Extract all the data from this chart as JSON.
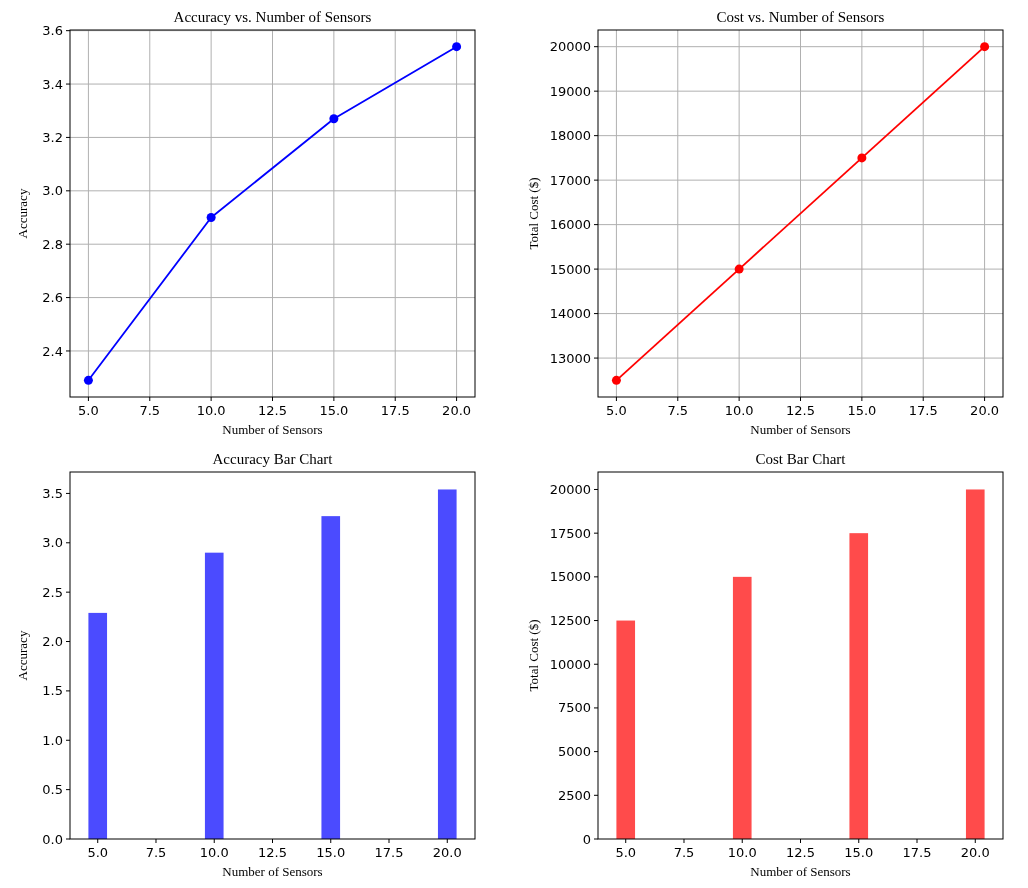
{
  "chart_data": [
    {
      "type": "line",
      "title": "Accuracy vs. Number of Sensors",
      "xlabel": "Number of Sensors",
      "ylabel": "Accuracy",
      "x": [
        5,
        10,
        15,
        20
      ],
      "series": [
        {
          "color": "#0000ff",
          "values": [
            2.29,
            2.9,
            3.27,
            3.54
          ]
        }
      ],
      "xlim": [
        4.25,
        20.75
      ],
      "ylim": [
        2.2275,
        3.6025
      ],
      "xticks": [
        {
          "value": 5,
          "label": "5.0"
        },
        7.5,
        {
          "value": 10,
          "label": "10.0"
        },
        12.5,
        {
          "value": 15,
          "label": "15.0"
        },
        17.5,
        {
          "value": 20,
          "label": "20.0"
        }
      ],
      "yticks": [
        2.4,
        2.6,
        2.8,
        {
          "value": 3,
          "label": "3.0"
        },
        3.2,
        3.4,
        3.6
      ],
      "grid": true,
      "marker": "circle"
    },
    {
      "type": "line",
      "title": "Cost vs. Number of Sensors",
      "xlabel": "Number of Sensors",
      "ylabel": "Total Cost ($)",
      "x": [
        5,
        10,
        15,
        20
      ],
      "series": [
        {
          "color": "#ff0000",
          "values": [
            12500,
            15000,
            17500,
            20000
          ]
        }
      ],
      "xlim": [
        4.25,
        20.75
      ],
      "ylim": [
        12125,
        20375
      ],
      "xticks": [
        {
          "value": 5,
          "label": "5.0"
        },
        7.5,
        {
          "value": 10,
          "label": "10.0"
        },
        12.5,
        {
          "value": 15,
          "label": "15.0"
        },
        17.5,
        {
          "value": 20,
          "label": "20.0"
        }
      ],
      "yticks": [
        13000,
        14000,
        15000,
        16000,
        17000,
        18000,
        19000,
        20000
      ],
      "grid": true,
      "marker": "circle"
    },
    {
      "type": "bar",
      "title": "Accuracy Bar Chart",
      "xlabel": "Number of Sensors",
      "ylabel": "Accuracy",
      "x": [
        5,
        10,
        15,
        20
      ],
      "series": [
        {
          "color": "#4b4bff",
          "values": [
            2.29,
            2.9,
            3.27,
            3.54
          ]
        }
      ],
      "xlim": [
        3.81,
        21.19
      ],
      "ylim": [
        0,
        3.717
      ],
      "xticks": [
        {
          "value": 5,
          "label": "5.0"
        },
        7.5,
        {
          "value": 10,
          "label": "10.0"
        },
        12.5,
        {
          "value": 15,
          "label": "15.0"
        },
        17.5,
        {
          "value": 20,
          "label": "20.0"
        }
      ],
      "yticks": [
        {
          "value": 0,
          "label": "0.0"
        },
        0.5,
        {
          "value": 1,
          "label": "1.0"
        },
        1.5,
        {
          "value": 2,
          "label": "2.0"
        },
        2.5,
        {
          "value": 3,
          "label": "3.0"
        },
        3.5
      ]
    },
    {
      "type": "bar",
      "title": "Cost Bar Chart",
      "xlabel": "Number of Sensors",
      "ylabel": "Total Cost ($)",
      "x": [
        5,
        10,
        15,
        20
      ],
      "series": [
        {
          "color": "#ff4b4b",
          "values": [
            12500,
            15000,
            17500,
            20000
          ]
        }
      ],
      "xlim": [
        3.81,
        21.19
      ],
      "ylim": [
        0,
        21000
      ],
      "xticks": [
        {
          "value": 5,
          "label": "5.0"
        },
        7.5,
        {
          "value": 10,
          "label": "10.0"
        },
        12.5,
        {
          "value": 15,
          "label": "15.0"
        },
        17.5,
        {
          "value": 20,
          "label": "20.0"
        }
      ],
      "yticks": [
        0,
        2500,
        5000,
        7500,
        10000,
        12500,
        15000,
        17500,
        20000
      ]
    }
  ]
}
